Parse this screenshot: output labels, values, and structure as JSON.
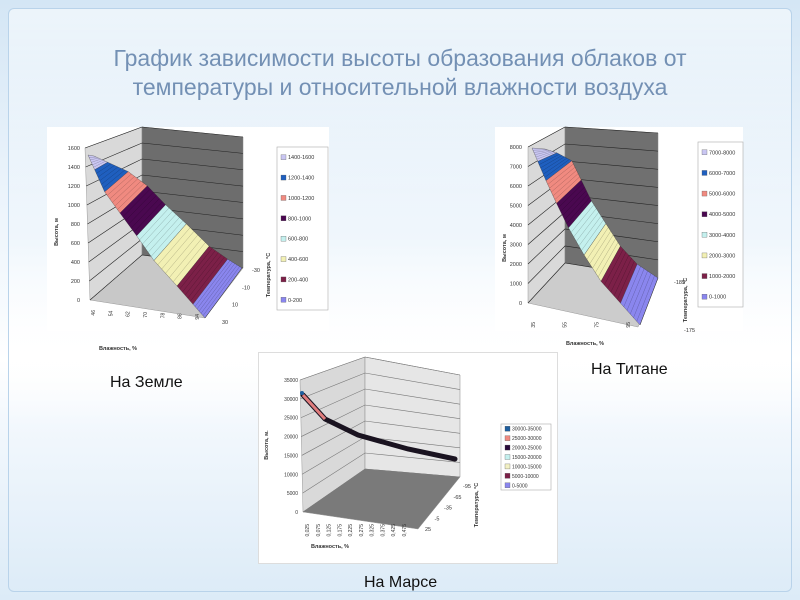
{
  "title": {
    "line1": "График зависимости высоты образования облаков от",
    "line2": "температуры и относительной влажности воздуха"
  },
  "captions": {
    "earth": "На Земле",
    "titan": "На Титане",
    "mars": "На Марсе"
  },
  "chart_data": [
    {
      "type": "surface",
      "ylabel": "Высота, м",
      "xlabel": "Влажность, %",
      "zlabel": "Температура, °С",
      "y_ticks": [
        "0",
        "200",
        "400",
        "600",
        "800",
        "1000",
        "1200",
        "1400",
        "1600"
      ],
      "x_ticks": [
        "46",
        "54",
        "62",
        "70",
        "78",
        "86",
        "94"
      ],
      "z_ticks": [
        "-30",
        "-10",
        "10",
        "30"
      ],
      "ylim": [
        0,
        1600
      ],
      "legend": [
        "1400-1600",
        "1200-1400",
        "1000-1200",
        "800-1000",
        "600-800",
        "400-600",
        "200-400",
        "0-200"
      ],
      "colors": [
        "#c9c6f2",
        "#1f5fbf",
        "#f08a80",
        "#4a0850",
        "#c4f0ee",
        "#f2f0b4",
        "#7c2048",
        "#8a86ee"
      ],
      "legend_position": "right",
      "grid": true
    },
    {
      "type": "surface",
      "ylabel": "Высота, м",
      "xlabel": "Влажность, %",
      "zlabel": "Температура, °С",
      "y_ticks": [
        "0",
        "1000",
        "2000",
        "3000",
        "4000",
        "5000",
        "6000",
        "7000",
        "8000"
      ],
      "x_ticks": [
        "35",
        "55",
        "75",
        "95"
      ],
      "z_ticks": [
        "-185",
        "-175"
      ],
      "ylim": [
        0,
        8000
      ],
      "legend": [
        "7000-8000",
        "6000-7000",
        "5000-6000",
        "4000-5000",
        "3000-4000",
        "2000-3000",
        "1000-2000",
        "0-1000"
      ],
      "colors": [
        "#c9c6f2",
        "#1f5fbf",
        "#f08a80",
        "#4a0850",
        "#c4f0ee",
        "#f2f0b4",
        "#7c2048",
        "#8a86ee"
      ],
      "legend_position": "right",
      "grid": true
    },
    {
      "type": "surface",
      "ylabel": "Высота, м.",
      "xlabel": "Влажность, %",
      "zlabel": "Температура, °С",
      "y_ticks": [
        "0",
        "5000",
        "10000",
        "15000",
        "20000",
        "25000",
        "30000",
        "35000"
      ],
      "x_ticks": [
        "0,025",
        "0,075",
        "0,125",
        "0,175",
        "0,225",
        "0,275",
        "0,325",
        "0,375",
        "0,425",
        "0,475"
      ],
      "z_ticks": [
        "-95",
        "-65",
        "-35",
        "-5",
        "25"
      ],
      "ylim": [
        0,
        35000
      ],
      "legend": [
        "30000-35000",
        "25000-30000",
        "20000-25000",
        "15000-20000",
        "10000-15000",
        "5000-10000",
        "0-5000"
      ],
      "colors": [
        "#1f5f9f",
        "#f08a80",
        "#2a0a3a",
        "#c4f0ee",
        "#f2f0c4",
        "#7c2048",
        "#8a86ee"
      ],
      "legend_position": "right",
      "grid": true
    }
  ]
}
